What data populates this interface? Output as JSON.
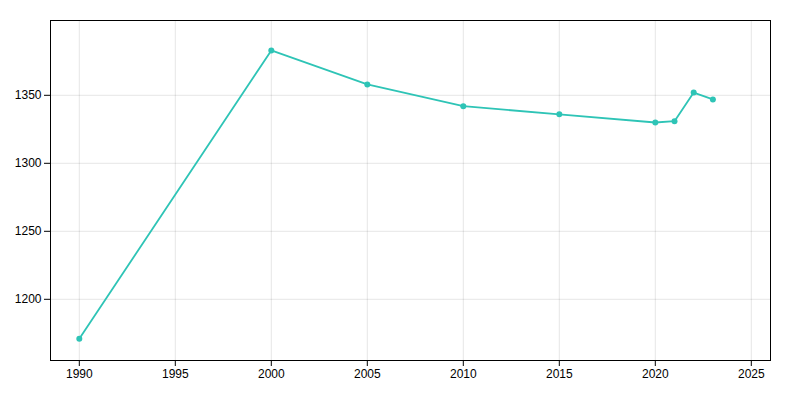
{
  "chart_data": {
    "type": "line",
    "x": [
      1990,
      2000,
      2005,
      2010,
      2015,
      2020,
      2021,
      2022,
      2023
    ],
    "values": [
      1171,
      1383,
      1358,
      1342,
      1336,
      1330,
      1331,
      1352,
      1347
    ],
    "color": "#2ec4b6",
    "marker": "circle",
    "xlim": [
      1988.5,
      2026
    ],
    "ylim": [
      1155,
      1405
    ],
    "xticks": [
      1990,
      1995,
      2000,
      2005,
      2010,
      2015,
      2020,
      2025
    ],
    "yticks": [
      1200,
      1250,
      1300,
      1350
    ],
    "grid": true
  }
}
